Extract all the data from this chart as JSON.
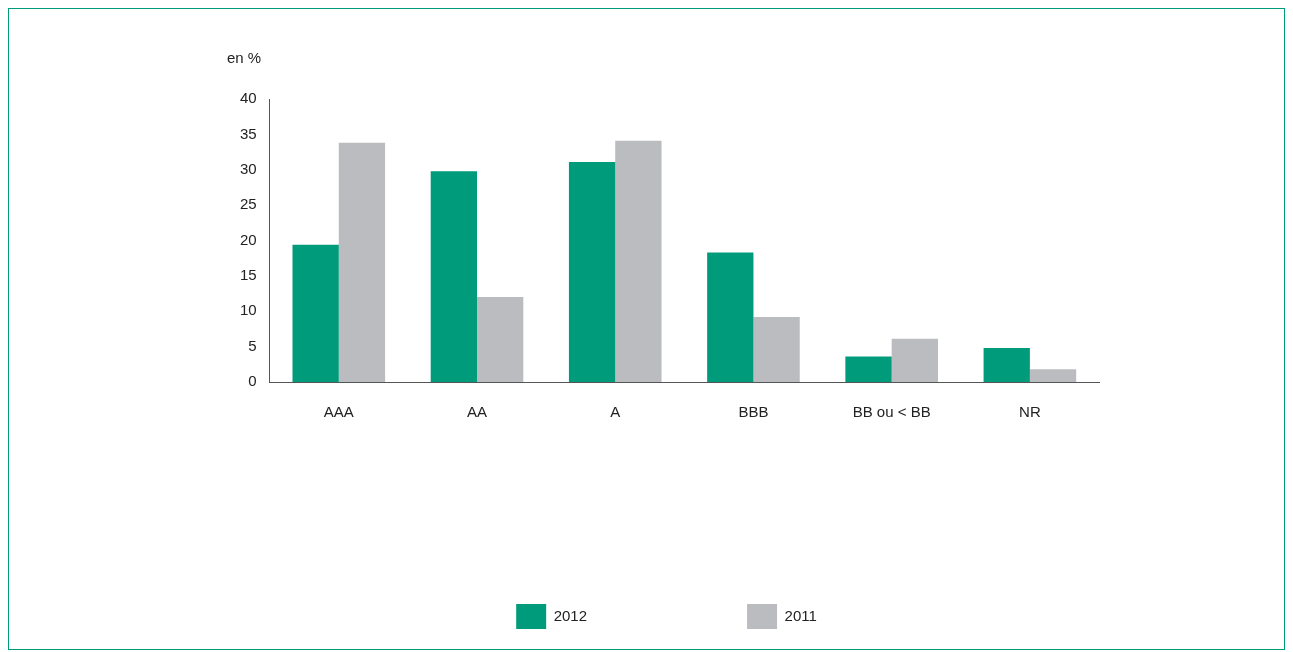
{
  "chart_data": {
    "type": "bar",
    "ylabel": "en %",
    "categories": [
      "AAA",
      "AA",
      "A",
      "BBB",
      "BB ou < BB",
      "NR"
    ],
    "series": [
      {
        "name": "2012",
        "color": "#009b7a",
        "values": [
          19.4,
          29.8,
          31.1,
          18.3,
          3.6,
          4.8
        ]
      },
      {
        "name": "2011",
        "color": "#bbbcbf",
        "values": [
          33.8,
          12.0,
          34.1,
          9.2,
          6.1,
          1.8
        ]
      }
    ],
    "ylim": [
      0,
      40
    ],
    "yticks": [
      0,
      5,
      10,
      15,
      20,
      25,
      30,
      35,
      40
    ],
    "legend": "bottom"
  }
}
